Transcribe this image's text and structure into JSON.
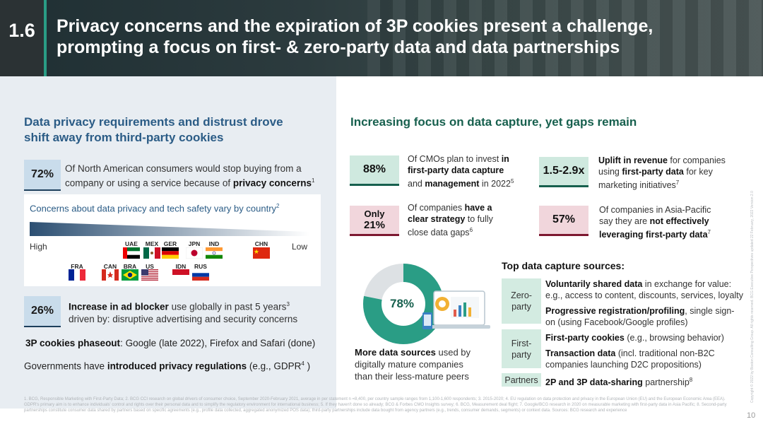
{
  "header": {
    "section_number": "1.6",
    "title_line1": "Privacy concerns and the expiration of 3P cookies present a challenge,",
    "title_line2": "prompting a focus on first- & zero-party data and data partnerships"
  },
  "left": {
    "heading_line1": "Data privacy requirements and distrust drove",
    "heading_line2": "shift away from third-party cookies",
    "stat1": {
      "value": "72%",
      "text_a": "Of North American consumers would stop buying from a",
      "text_b": "company or using a service because of ",
      "text_bold": "privacy concerns",
      "sup": "1"
    },
    "card": {
      "title": "Concerns about data privacy and tech safety vary by country",
      "title_sup": "2",
      "high_label": "High",
      "low_label": "Low",
      "top_countries": [
        "UAE",
        "MEX",
        "GER",
        "JPN",
        "IND",
        "CHN"
      ],
      "bottom_countries": [
        "FRA",
        "CAN",
        "BRA",
        "US",
        "IDN",
        "RUS"
      ]
    },
    "stat2": {
      "value": "26%",
      "text_bold": "Increase in ad blocker",
      "text_a": " use globally in past 5 years",
      "sup": "3",
      "text_b": "driven by: disruptive advertising and security concerns"
    },
    "cookies_bold": "3P cookies phaseout",
    "cookies_rest": ": Google (late 2022), Firefox and Safari (done)",
    "gov_a": "Governments have ",
    "gov_bold": "introduced privacy regulations",
    "gov_b": " (e.g., GDPR",
    "gov_sup": "4",
    "gov_c": " )"
  },
  "right": {
    "heading": "Increasing focus on data capture, yet gaps remain",
    "stats": {
      "s88": {
        "value": "88%",
        "a": "Of CMOs plan to invest ",
        "b": "in",
        "c": "first-party data capture",
        "d": "and ",
        "e": "management",
        "f": " in 2022",
        "sup": "5"
      },
      "s15": {
        "value": "1.5-2.9x",
        "a": "Uplift in revenue",
        "b": " for companies",
        "c": "using ",
        "d": "first-party data",
        "e": " for key",
        "f": "marketing initiatives",
        "sup": "7"
      },
      "s21": {
        "value_a": "Only",
        "value_b": "21%",
        "a": "Of companies ",
        "b": "have a",
        "c": "clear strategy",
        "d": " to fully",
        "e": "close data gaps",
        "sup": "6"
      },
      "s57": {
        "value": "57%",
        "a": "Of companies in Asia-Pacific",
        "b": "say they are ",
        "c": "not effectively",
        "d": "leveraging first-party data",
        "sup": "7"
      }
    },
    "donut": {
      "value_label": "78%",
      "value": 78,
      "caption_bold": "More data sources",
      "caption_a": " used by",
      "caption_b": "digitally mature companies",
      "caption_c": "than their less-mature peers"
    },
    "sources_title": "Top data capture sources:",
    "zero_label_a": "Zero-",
    "zero_label_b": "party",
    "first_label_a": "First-",
    "first_label_b": "party",
    "partners_label": "Partners",
    "src1_bold": "Voluntarily shared data",
    "src1_a": " in exchange for value:",
    "src1_b": "e.g., access to content, discounts, services, loyalty",
    "src2_bold": "Progressive registration/profiling",
    "src2_a": ", single sign-",
    "src2_b": "on (using Facebook/Google profiles)",
    "src3_bold": "First-party cookies",
    "src3_a": " (e.g., browsing behavior)",
    "src4_bold": "Transaction data",
    "src4_a": " (incl. traditional non-B2C",
    "src4_b": "companies launching D2C propositions)",
    "src5_bold": "2P and 3P data-sharing",
    "src5_a": " partnership",
    "src5_sup": "8"
  },
  "footnote": "1. BCG, Responsible Marketing with First-Party Data; 2. BCG CCI research on global drivers of consumer choice, September 2020-February 2021, average in per statement n =8,400, per country sample ranges from 1,100-1,600 respondents; 3. 2015-2020; 4. EU regulation on data protection and privacy in the European Union (EU) and the European Economic Area (EEA). GDPR's primary aim is to enhance individuals' control and rights over their personal data and to simplify the regulatory environment for international business; 5. If they haven't done so already; BCG & Forbes CMO Insights survey; 6. BCG, Measurement deal flight; 7. Google/BCG research in 2020 on measurable marketing with first-party data in Asia Pacific; 8. Second-party partnerships constitute consumer data shared by partners based on specific agreements (e.g., profile data collected, aggregated anonymized POS data); third-party partnerships include data bought from agency partners (e.g., trends, consumer demands, segments) or context data. Sources: BCG research and experience",
  "page_number": "10",
  "side_note": "Copyright © 2022 by Boston Consulting Group. All rights reserved. BCG Executive Perspectives updated 22 February, 2022 Version 2.0",
  "colors": {
    "green": "#17604e",
    "blue": "#2b5c86",
    "teal": "#2a9d85",
    "rose": "#7d1830"
  }
}
